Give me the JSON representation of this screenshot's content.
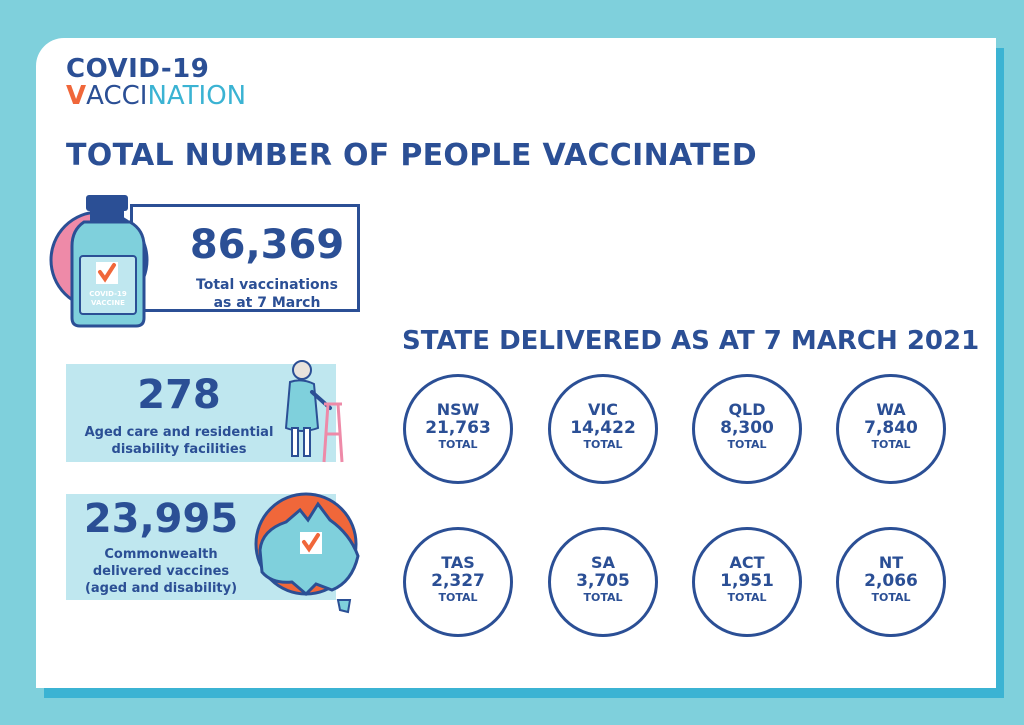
{
  "logo": {
    "line1": "COVID-19",
    "line2_tick": "V",
    "line2_mid": "ACCI",
    "line2_end": "NATION"
  },
  "title": "TOTAL NUMBER OF PEOPLE VACCINATED",
  "total": {
    "value": "86,369",
    "label_line1": "Total vaccinations",
    "label_line2": "as at 7 March",
    "bottle_label_line1": "COVID-19",
    "bottle_label_line2": "VACCINE"
  },
  "aged": {
    "value": "278",
    "label_line1": "Aged care and residential",
    "label_line2": "disability facilities"
  },
  "commonwealth": {
    "value": "23,995",
    "label_line1": "Commonwealth",
    "label_line2": "delivered vaccines",
    "label_line3": "(aged and disability)"
  },
  "states_title": "STATE DELIVERED AS AT 7 MARCH 2021",
  "states": [
    {
      "name": "NSW",
      "value": "21,763",
      "label": "TOTAL"
    },
    {
      "name": "VIC",
      "value": "14,422",
      "label": "TOTAL"
    },
    {
      "name": "QLD",
      "value": "8,300",
      "label": "TOTAL"
    },
    {
      "name": "WA",
      "value": "7,840",
      "label": "TOTAL"
    },
    {
      "name": "TAS",
      "value": "2,327",
      "label": "TOTAL"
    },
    {
      "name": "SA",
      "value": "3,705",
      "label": "TOTAL"
    },
    {
      "name": "ACT",
      "value": "1,951",
      "label": "TOTAL"
    },
    {
      "name": "NT",
      "value": "2,066",
      "label": "TOTAL"
    }
  ],
  "colors": {
    "navy": "#2b4f95",
    "teal": "#3bb3d3",
    "orange": "#f0673a",
    "pink": "#ee8aa8",
    "light_teal": "#bfe7ef",
    "background": "#7fd0dc"
  },
  "icons": [
    "vaccine-bottle-icon",
    "elderly-person-walker-icon",
    "australia-map-icon",
    "checkmark-icon"
  ]
}
